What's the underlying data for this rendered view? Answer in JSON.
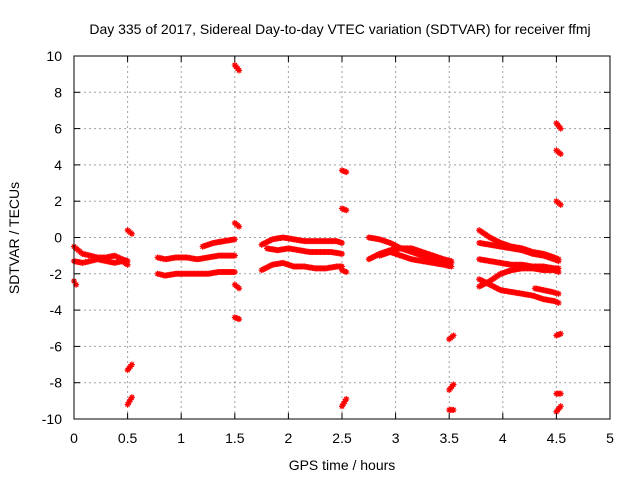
{
  "chart_data": {
    "type": "scatter",
    "title": "Day 335 of 2017, Sidereal Day-to-day VTEC variation (SDTVAR) for receiver ffmj",
    "xlabel": "GPS time / hours",
    "ylabel": "SDTVAR / TECUs",
    "xlim": [
      0,
      5
    ],
    "ylim": [
      -10,
      10
    ],
    "xticks": [
      0,
      0.5,
      1,
      1.5,
      2,
      2.5,
      3,
      3.5,
      4,
      4.5,
      5
    ],
    "xtick_labels": [
      "0",
      "0.5",
      "1",
      "1.5",
      "2",
      "2.5",
      "3",
      "3.5",
      "4",
      "4.5",
      "5"
    ],
    "yticks": [
      -10,
      -8,
      -6,
      -4,
      -2,
      0,
      2,
      4,
      6,
      8,
      10
    ],
    "ytick_labels": [
      "-10",
      "-8",
      "-6",
      "-4",
      "-2",
      "0",
      "2",
      "4",
      "6",
      "8",
      "10"
    ],
    "grid": true,
    "marker": "plus",
    "color": "#ff0000",
    "series": [
      {
        "name": "seg-a1",
        "x": [
          0.0,
          0.08,
          0.15,
          0.22,
          0.3,
          0.38,
          0.45,
          0.5
        ],
        "y": [
          -0.5,
          -0.9,
          -1.0,
          -1.1,
          -1.1,
          -1.0,
          -1.2,
          -1.3
        ]
      },
      {
        "name": "seg-a2",
        "x": [
          0.0,
          0.08,
          0.15,
          0.22,
          0.3,
          0.38,
          0.45,
          0.5
        ],
        "y": [
          -1.3,
          -1.4,
          -1.3,
          -1.2,
          -1.3,
          -1.4,
          -1.3,
          -1.5
        ]
      },
      {
        "name": "seg-a3",
        "x": [
          0.0,
          0.02
        ],
        "y": [
          -2.4,
          -2.6
        ]
      },
      {
        "name": "seg-b1",
        "x": [
          0.5,
          0.54
        ],
        "y": [
          0.4,
          0.2
        ]
      },
      {
        "name": "seg-b2",
        "x": [
          0.5,
          0.54
        ],
        "y": [
          -7.3,
          -7.0
        ]
      },
      {
        "name": "seg-b3",
        "x": [
          0.5,
          0.54
        ],
        "y": [
          -9.2,
          -8.8
        ]
      },
      {
        "name": "seg-c1",
        "x": [
          0.78,
          0.85,
          0.95,
          1.05,
          1.15,
          1.25,
          1.35,
          1.45,
          1.5
        ],
        "y": [
          -1.1,
          -1.2,
          -1.1,
          -1.1,
          -1.2,
          -1.1,
          -1.0,
          -1.0,
          -1.0
        ]
      },
      {
        "name": "seg-c2",
        "x": [
          0.78,
          0.85,
          0.95,
          1.05,
          1.15,
          1.25,
          1.35,
          1.45,
          1.5
        ],
        "y": [
          -2.0,
          -2.1,
          -2.0,
          -2.0,
          -2.0,
          -2.0,
          -1.9,
          -1.9,
          -1.9
        ]
      },
      {
        "name": "seg-c3",
        "x": [
          1.2,
          1.3,
          1.4,
          1.5
        ],
        "y": [
          -0.5,
          -0.3,
          -0.2,
          -0.1
        ]
      },
      {
        "name": "seg-d1",
        "x": [
          1.5,
          1.54
        ],
        "y": [
          9.5,
          9.2
        ]
      },
      {
        "name": "seg-d2",
        "x": [
          1.5,
          1.54
        ],
        "y": [
          0.8,
          0.6
        ]
      },
      {
        "name": "seg-d3",
        "x": [
          1.5,
          1.54
        ],
        "y": [
          -2.6,
          -2.8
        ]
      },
      {
        "name": "seg-d4",
        "x": [
          1.5,
          1.54
        ],
        "y": [
          -4.4,
          -4.5
        ]
      },
      {
        "name": "seg-e1",
        "x": [
          1.75,
          1.85,
          1.95,
          2.05,
          2.15,
          2.25,
          2.35,
          2.45,
          2.5
        ],
        "y": [
          -0.4,
          -0.1,
          0.0,
          -0.1,
          -0.2,
          -0.2,
          -0.2,
          -0.2,
          -0.3
        ]
      },
      {
        "name": "seg-e2",
        "x": [
          1.8,
          1.9,
          2.0,
          2.1,
          2.2,
          2.3,
          2.4,
          2.5
        ],
        "y": [
          -0.6,
          -0.7,
          -0.6,
          -0.7,
          -0.8,
          -0.8,
          -0.8,
          -0.9
        ]
      },
      {
        "name": "seg-e3",
        "x": [
          1.75,
          1.85,
          1.95,
          2.05,
          2.15,
          2.25,
          2.35,
          2.45,
          2.5
        ],
        "y": [
          -1.8,
          -1.5,
          -1.4,
          -1.6,
          -1.6,
          -1.7,
          -1.7,
          -1.6,
          -1.6
        ]
      },
      {
        "name": "seg-f1",
        "x": [
          2.5,
          2.54
        ],
        "y": [
          3.7,
          3.6
        ]
      },
      {
        "name": "seg-f2",
        "x": [
          2.5,
          2.54
        ],
        "y": [
          1.6,
          1.5
        ]
      },
      {
        "name": "seg-f3",
        "x": [
          2.5,
          2.54
        ],
        "y": [
          -1.8,
          -1.9
        ]
      },
      {
        "name": "seg-f4",
        "x": [
          2.5,
          2.54
        ],
        "y": [
          -9.3,
          -8.9
        ]
      },
      {
        "name": "seg-g1",
        "x": [
          2.75,
          2.85,
          2.95,
          3.05,
          3.15,
          3.25,
          3.35,
          3.45,
          3.52
        ],
        "y": [
          0.0,
          -0.1,
          -0.3,
          -0.6,
          -0.8,
          -1.0,
          -1.2,
          -1.3,
          -1.4
        ]
      },
      {
        "name": "seg-g2",
        "x": [
          2.75,
          2.85,
          2.95,
          3.05,
          3.15,
          3.25,
          3.35,
          3.45,
          3.52
        ],
        "y": [
          -1.2,
          -0.9,
          -0.7,
          -0.6,
          -0.6,
          -0.8,
          -1.0,
          -1.2,
          -1.3
        ]
      },
      {
        "name": "seg-g3",
        "x": [
          2.85,
          2.95,
          3.05,
          3.15,
          3.25,
          3.35,
          3.45,
          3.52
        ],
        "y": [
          -1.0,
          -0.8,
          -1.0,
          -1.2,
          -1.3,
          -1.4,
          -1.5,
          -1.6
        ]
      },
      {
        "name": "seg-h1",
        "x": [
          3.5,
          3.54
        ],
        "y": [
          -5.6,
          -5.4
        ]
      },
      {
        "name": "seg-h2",
        "x": [
          3.5,
          3.54
        ],
        "y": [
          -8.4,
          -8.1
        ]
      },
      {
        "name": "seg-h3",
        "x": [
          3.5,
          3.54
        ],
        "y": [
          -9.5,
          -9.5
        ]
      },
      {
        "name": "seg-i1",
        "x": [
          3.78,
          3.88,
          3.98,
          4.08,
          4.18,
          4.28,
          4.38,
          4.48,
          4.52
        ],
        "y": [
          0.4,
          0.0,
          -0.3,
          -0.5,
          -0.6,
          -0.8,
          -0.9,
          -1.1,
          -1.2
        ]
      },
      {
        "name": "seg-i2",
        "x": [
          3.78,
          3.88,
          3.98,
          4.08,
          4.18,
          4.28,
          4.38,
          4.48,
          4.52
        ],
        "y": [
          -0.3,
          -0.4,
          -0.5,
          -0.6,
          -0.7,
          -0.9,
          -1.0,
          -1.2,
          -1.3
        ]
      },
      {
        "name": "seg-i3",
        "x": [
          3.78,
          3.88,
          3.98,
          4.08,
          4.18,
          4.28,
          4.38,
          4.48,
          4.52
        ],
        "y": [
          -1.2,
          -1.3,
          -1.4,
          -1.5,
          -1.5,
          -1.6,
          -1.6,
          -1.7,
          -1.7
        ]
      },
      {
        "name": "seg-i4",
        "x": [
          3.78,
          3.88,
          3.98,
          4.08,
          4.18,
          4.28,
          4.38,
          4.48,
          4.52
        ],
        "y": [
          -2.7,
          -2.4,
          -2.0,
          -1.8,
          -1.7,
          -1.7,
          -1.8,
          -1.8,
          -1.9
        ]
      },
      {
        "name": "seg-i5",
        "x": [
          3.78,
          3.88,
          3.98,
          4.08,
          4.18,
          4.28,
          4.38,
          4.48,
          4.52
        ],
        "y": [
          -2.3,
          -2.6,
          -2.9,
          -3.0,
          -3.1,
          -3.2,
          -3.4,
          -3.5,
          -3.6
        ]
      },
      {
        "name": "seg-i6",
        "x": [
          4.3,
          4.38,
          4.46,
          4.52
        ],
        "y": [
          -2.8,
          -2.9,
          -3.0,
          -3.1
        ]
      },
      {
        "name": "seg-j1",
        "x": [
          4.5,
          4.54
        ],
        "y": [
          6.3,
          6.0
        ]
      },
      {
        "name": "seg-j2",
        "x": [
          4.5,
          4.54
        ],
        "y": [
          4.8,
          4.6
        ]
      },
      {
        "name": "seg-j3",
        "x": [
          4.5,
          4.54
        ],
        "y": [
          2.0,
          1.8
        ]
      },
      {
        "name": "seg-j4",
        "x": [
          4.5,
          4.54
        ],
        "y": [
          -5.4,
          -5.3
        ]
      },
      {
        "name": "seg-j5",
        "x": [
          4.5,
          4.54
        ],
        "y": [
          -8.6,
          -8.6
        ]
      },
      {
        "name": "seg-j6",
        "x": [
          4.5,
          4.54
        ],
        "y": [
          -9.6,
          -9.3
        ]
      }
    ]
  }
}
